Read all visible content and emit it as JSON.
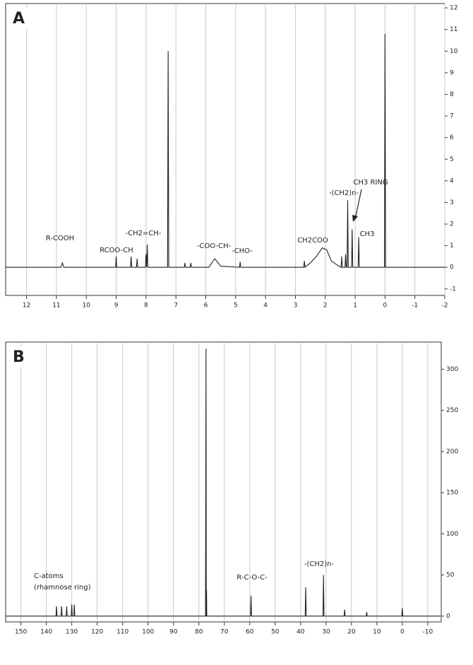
{
  "chart_data": [
    {
      "type": "line",
      "panel_label": "A",
      "series": [
        {
          "color": "#222222",
          "x": [
            12.7,
            10.85,
            10.8,
            10.75,
            9.02,
            9.0,
            8.98,
            8.52,
            8.5,
            8.48,
            8.32,
            8.3,
            8.28,
            8.02,
            8.0,
            7.98,
            7.96,
            7.94,
            7.28,
            7.26,
            7.24,
            6.72,
            6.7,
            6.68,
            6.52,
            6.5,
            6.48,
            5.9,
            5.7,
            5.5,
            4.87,
            4.85,
            4.83,
            2.72,
            2.7,
            2.68,
            2.5,
            2.3,
            2.1,
            1.95,
            1.8,
            1.6,
            1.47,
            1.45,
            1.43,
            1.34,
            1.32,
            1.3,
            1.27,
            1.25,
            1.23,
            1.12,
            1.1,
            1.08,
            0.9,
            0.88,
            0.86,
            0.02,
            0,
            -0.02,
            -2
          ],
          "values": [
            0,
            0,
            0.2,
            0,
            0,
            0.5,
            0,
            0,
            0.5,
            0,
            0,
            0.4,
            0,
            0,
            0.6,
            0,
            1.05,
            0,
            0,
            10.0,
            0,
            0,
            0.2,
            0,
            0,
            0.2,
            0,
            0,
            0.4,
            0.05,
            0,
            0.25,
            0,
            0,
            0.3,
            0,
            0.2,
            0.5,
            0.9,
            0.8,
            0.3,
            0.1,
            0,
            0.5,
            0,
            0,
            0.6,
            0,
            0,
            3.1,
            0,
            0,
            1.75,
            0,
            0,
            1.4,
            0,
            0,
            10.8,
            0,
            0
          ]
        }
      ],
      "annotations": [
        "R-COOH",
        "RCOO-CH",
        "-CH2=CH-",
        "-COO-CH-",
        "-CHO-",
        "CH2COO",
        "-(CH2)n-",
        "CH3 RING",
        "CH3"
      ],
      "xlim": [
        12.7,
        -2
      ],
      "xticks": [
        12,
        11,
        10,
        9,
        8,
        7,
        6,
        5,
        4,
        3,
        2,
        1,
        0,
        -1,
        -2
      ],
      "ylim": [
        -1.3,
        12.2
      ],
      "yticks": [
        -1,
        0,
        1,
        2,
        3,
        4,
        5,
        6,
        7,
        8,
        9,
        10,
        11,
        12
      ],
      "grid": true
    },
    {
      "type": "line",
      "panel_label": "B",
      "series": [
        {
          "color": "#222222",
          "x": [
            156,
            136.2,
            136,
            135.8,
            134.2,
            134,
            133.8,
            132.2,
            132,
            131.8,
            130.2,
            130,
            129.8,
            129.2,
            129,
            128.8,
            77.4,
            77.2,
            77.1,
            77,
            76.9,
            59.7,
            59.5,
            59.3,
            38.2,
            38,
            37.8,
            31.2,
            31,
            30.8,
            22.9,
            22.7,
            22.5,
            14.2,
            14,
            13.8,
            0.2,
            0,
            -0.2,
            -15
          ],
          "values": [
            0,
            0,
            12,
            0,
            0,
            12,
            0,
            0,
            12,
            0,
            0,
            14,
            0,
            0,
            14,
            0,
            0,
            325,
            0,
            32,
            0,
            0,
            25,
            0,
            0,
            35,
            0,
            0,
            50,
            0,
            0,
            8,
            0,
            0,
            5,
            0,
            0,
            10,
            0,
            0
          ]
        }
      ],
      "annotations": [
        "C-atoms",
        "(rhamnose ring)",
        "R-C-O-C-",
        "-(CH2)n-"
      ],
      "xlim": [
        156,
        -15.3
      ],
      "xticks": [
        150,
        140,
        130,
        120,
        110,
        100,
        90,
        80,
        70,
        60,
        50,
        40,
        30,
        20,
        10,
        0,
        -10
      ],
      "ylim": [
        -7,
        333
      ],
      "yticks": [
        0,
        50,
        100,
        150,
        200,
        250,
        300
      ],
      "grid": true
    }
  ]
}
